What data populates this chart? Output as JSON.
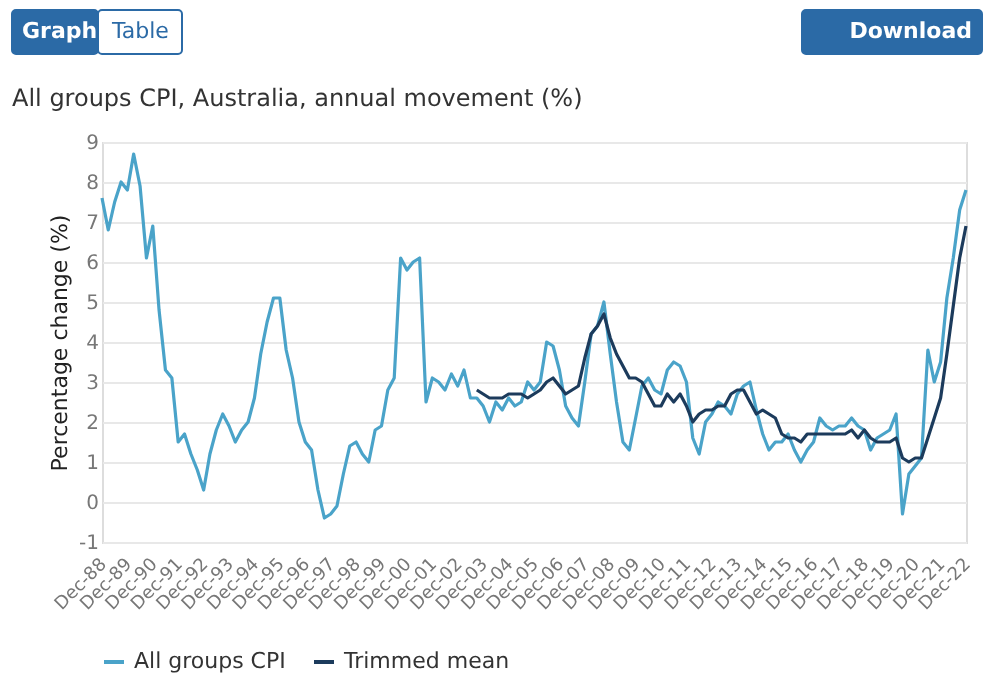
{
  "chart_data": {
    "type": "line",
    "title": "All groups CPI, Australia, annual movement (%)",
    "ylabel": "Percentage change (%)",
    "annotations": [
      "Graph",
      "Table",
      "Download"
    ],
    "x": [
      "1988-12",
      "1989-03",
      "1989-06",
      "1989-09",
      "1989-12",
      "1990-03",
      "1990-06",
      "1990-09",
      "1990-12",
      "1991-03",
      "1991-06",
      "1991-09",
      "1991-12",
      "1992-03",
      "1992-06",
      "1992-09",
      "1992-12",
      "1993-03",
      "1993-06",
      "1993-09",
      "1993-12",
      "1994-03",
      "1994-06",
      "1994-09",
      "1994-12",
      "1995-03",
      "1995-06",
      "1995-09",
      "1995-12",
      "1996-03",
      "1996-06",
      "1996-09",
      "1996-12",
      "1997-03",
      "1997-06",
      "1997-09",
      "1997-12",
      "1998-03",
      "1998-06",
      "1998-09",
      "1998-12",
      "1999-03",
      "1999-06",
      "1999-09",
      "1999-12",
      "2000-03",
      "2000-06",
      "2000-09",
      "2000-12",
      "2001-03",
      "2001-06",
      "2001-09",
      "2001-12",
      "2002-03",
      "2002-06",
      "2002-09",
      "2002-12",
      "2003-03",
      "2003-06",
      "2003-09",
      "2003-12",
      "2004-03",
      "2004-06",
      "2004-09",
      "2004-12",
      "2005-03",
      "2005-06",
      "2005-09",
      "2005-12",
      "2006-03",
      "2006-06",
      "2006-09",
      "2006-12",
      "2007-03",
      "2007-06",
      "2007-09",
      "2007-12",
      "2008-03",
      "2008-06",
      "2008-09",
      "2008-12",
      "2009-03",
      "2009-06",
      "2009-09",
      "2009-12",
      "2010-03",
      "2010-06",
      "2010-09",
      "2010-12",
      "2011-03",
      "2011-06",
      "2011-09",
      "2011-12",
      "2012-03",
      "2012-06",
      "2012-09",
      "2012-12",
      "2013-03",
      "2013-06",
      "2013-09",
      "2013-12",
      "2014-03",
      "2014-06",
      "2014-09",
      "2014-12",
      "2015-03",
      "2015-06",
      "2015-09",
      "2015-12",
      "2016-03",
      "2016-06",
      "2016-09",
      "2016-12",
      "2017-03",
      "2017-06",
      "2017-09",
      "2017-12",
      "2018-03",
      "2018-06",
      "2018-09",
      "2018-12",
      "2019-03",
      "2019-06",
      "2019-09",
      "2019-12",
      "2020-03",
      "2020-06",
      "2020-09",
      "2020-12",
      "2021-03",
      "2021-06",
      "2021-09",
      "2021-12",
      "2022-03",
      "2022-06",
      "2022-09",
      "2022-12"
    ],
    "series": [
      {
        "name": "All groups CPI",
        "color": "#4aa3c9",
        "values": [
          7.6,
          6.8,
          7.5,
          8.0,
          7.8,
          8.7,
          7.9,
          6.1,
          6.9,
          4.8,
          3.3,
          3.1,
          1.5,
          1.7,
          1.2,
          0.8,
          0.3,
          1.2,
          1.8,
          2.2,
          1.9,
          1.5,
          1.8,
          2.0,
          2.6,
          3.7,
          4.5,
          5.1,
          5.1,
          3.8,
          3.1,
          2.0,
          1.5,
          1.3,
          0.3,
          -0.4,
          -0.3,
          -0.1,
          0.7,
          1.4,
          1.5,
          1.2,
          1.0,
          1.8,
          1.9,
          2.8,
          3.1,
          6.1,
          5.8,
          6.0,
          6.1,
          2.5,
          3.1,
          3.0,
          2.8,
          3.2,
          2.9,
          3.3,
          2.6,
          2.6,
          2.4,
          2.0,
          2.5,
          2.3,
          2.6,
          2.4,
          2.5,
          3.0,
          2.8,
          3.0,
          4.0,
          3.9,
          3.3,
          2.4,
          2.1,
          1.9,
          3.0,
          4.2,
          4.4,
          5.0,
          3.7,
          2.5,
          1.5,
          1.3,
          2.1,
          2.9,
          3.1,
          2.8,
          2.7,
          3.3,
          3.5,
          3.4,
          3.0,
          1.6,
          1.2,
          2.0,
          2.2,
          2.5,
          2.4,
          2.2,
          2.7,
          2.9,
          3.0,
          2.3,
          1.7,
          1.3,
          1.5,
          1.5,
          1.7,
          1.3,
          1.0,
          1.3,
          1.5,
          2.1,
          1.9,
          1.8,
          1.9,
          1.9,
          2.1,
          1.9,
          1.8,
          1.3,
          1.6,
          1.7,
          1.8,
          2.2,
          -0.3,
          0.7,
          0.9,
          1.1,
          3.8,
          3.0,
          3.5,
          5.1,
          6.1,
          7.3,
          7.8
        ]
      },
      {
        "name": "Trimmed mean",
        "color": "#1c3b5c",
        "values": [
          null,
          null,
          null,
          null,
          null,
          null,
          null,
          null,
          null,
          null,
          null,
          null,
          null,
          null,
          null,
          null,
          null,
          null,
          null,
          null,
          null,
          null,
          null,
          null,
          null,
          null,
          null,
          null,
          null,
          null,
          null,
          null,
          null,
          null,
          null,
          null,
          null,
          null,
          null,
          null,
          null,
          null,
          null,
          null,
          null,
          null,
          null,
          null,
          null,
          null,
          null,
          null,
          null,
          null,
          null,
          null,
          null,
          null,
          null,
          2.8,
          2.7,
          2.6,
          2.6,
          2.6,
          2.7,
          2.7,
          2.7,
          2.6,
          2.7,
          2.8,
          3.0,
          3.1,
          2.9,
          2.7,
          2.8,
          2.9,
          3.6,
          4.2,
          4.4,
          4.7,
          4.1,
          3.7,
          3.4,
          3.1,
          3.1,
          3.0,
          2.7,
          2.4,
          2.4,
          2.7,
          2.5,
          2.7,
          2.4,
          2.0,
          2.2,
          2.3,
          2.3,
          2.4,
          2.4,
          2.7,
          2.8,
          2.8,
          2.5,
          2.2,
          2.3,
          2.2,
          2.1,
          1.7,
          1.6,
          1.6,
          1.5,
          1.7,
          1.7,
          1.7,
          1.7,
          1.7,
          1.7,
          1.7,
          1.8,
          1.6,
          1.8,
          1.6,
          1.5,
          1.5,
          1.5,
          1.6,
          1.1,
          1.0,
          1.1,
          1.1,
          1.6,
          2.1,
          2.6,
          3.7,
          4.9,
          6.1,
          6.9
        ]
      }
    ],
    "xlim": [
      "1988-12",
      "2022-12"
    ],
    "xticks": [
      {
        "value": "1988-12",
        "label": "Dec-88"
      },
      {
        "value": "1989-12",
        "label": "Dec-89"
      },
      {
        "value": "1990-12",
        "label": "Dec-90"
      },
      {
        "value": "1991-12",
        "label": "Dec-91"
      },
      {
        "value": "1992-12",
        "label": "Dec-92"
      },
      {
        "value": "1993-12",
        "label": "Dec-93"
      },
      {
        "value": "1994-12",
        "label": "Dec-94"
      },
      {
        "value": "1995-12",
        "label": "Dec-95"
      },
      {
        "value": "1996-12",
        "label": "Dec-96"
      },
      {
        "value": "1997-12",
        "label": "Dec-97"
      },
      {
        "value": "1998-12",
        "label": "Dec-98"
      },
      {
        "value": "1999-12",
        "label": "Dec-99"
      },
      {
        "value": "2000-12",
        "label": "Dec-00"
      },
      {
        "value": "2001-12",
        "label": "Dec-01"
      },
      {
        "value": "2002-12",
        "label": "Dec-02"
      },
      {
        "value": "2003-12",
        "label": "Dec-03"
      },
      {
        "value": "2004-12",
        "label": "Dec-04"
      },
      {
        "value": "2005-12",
        "label": "Dec-05"
      },
      {
        "value": "2006-12",
        "label": "Dec-06"
      },
      {
        "value": "2007-12",
        "label": "Dec-07"
      },
      {
        "value": "2008-12",
        "label": "Dec-08"
      },
      {
        "value": "2009-12",
        "label": "Dec-09"
      },
      {
        "value": "2010-12",
        "label": "Dec-10"
      },
      {
        "value": "2011-12",
        "label": "Dec-11"
      },
      {
        "value": "2012-12",
        "label": "Dec-12"
      },
      {
        "value": "2013-12",
        "label": "Dec-13"
      },
      {
        "value": "2014-12",
        "label": "Dec-14"
      },
      {
        "value": "2015-12",
        "label": "Dec-15"
      },
      {
        "value": "2016-12",
        "label": "Dec-16"
      },
      {
        "value": "2017-12",
        "label": "Dec-17"
      },
      {
        "value": "2018-12",
        "label": "Dec-18"
      },
      {
        "value": "2019-12",
        "label": "Dec-19"
      },
      {
        "value": "2020-12",
        "label": "Dec-20"
      },
      {
        "value": "2021-12",
        "label": "Dec-21"
      },
      {
        "value": "2022-12",
        "label": "Dec-22"
      }
    ],
    "ylim": [
      -1,
      9
    ],
    "yticks": [
      -1,
      0,
      1,
      2,
      3,
      4,
      5,
      6,
      7,
      8,
      9
    ],
    "grid": "y",
    "legend": "bottom",
    "line_style": "solid",
    "marker": "none"
  }
}
